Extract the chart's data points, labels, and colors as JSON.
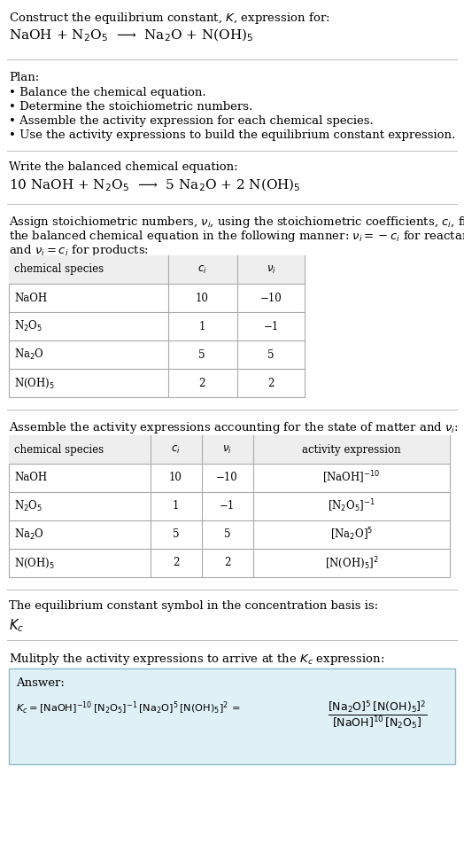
{
  "title_line1": "Construct the equilibrium constant, $K$, expression for:",
  "title_line2": "NaOH + N$_2$O$_5$  ⟶  Na$_2$O + N(OH)$_5$",
  "plan_header": "Plan:",
  "plan_bullets": [
    "• Balance the chemical equation.",
    "• Determine the stoichiometric numbers.",
    "• Assemble the activity expression for each chemical species.",
    "• Use the activity expressions to build the equilibrium constant expression."
  ],
  "balanced_header": "Write the balanced chemical equation:",
  "balanced_eq": "10 NaOH + N$_2$O$_5$  ⟶  5 Na$_2$O + 2 N(OH)$_5$",
  "stoich_intro1": "Assign stoichiometric numbers, $\\nu_i$, using the stoichiometric coefficients, $c_i$, from",
  "stoich_intro2": "the balanced chemical equation in the following manner: $\\nu_i = -c_i$ for reactants",
  "stoich_intro3": "and $\\nu_i = c_i$ for products:",
  "table1_headers": [
    "chemical species",
    "$c_i$",
    "$\\nu_i$"
  ],
  "table1_rows": [
    [
      "NaOH",
      "10",
      "−10"
    ],
    [
      "N$_2$O$_5$",
      "1",
      "−1"
    ],
    [
      "Na$_2$O",
      "5",
      "5"
    ],
    [
      "N(OH)$_5$",
      "2",
      "2"
    ]
  ],
  "activity_intro": "Assemble the activity expressions accounting for the state of matter and $\\nu_i$:",
  "table2_headers": [
    "chemical species",
    "$c_i$",
    "$\\nu_i$",
    "activity expression"
  ],
  "table2_rows": [
    [
      "NaOH",
      "10",
      "−10",
      "[NaOH]$^{-10}$"
    ],
    [
      "N$_2$O$_5$",
      "1",
      "−1",
      "[N$_2$O$_5$]$^{-1}$"
    ],
    [
      "Na$_2$O",
      "5",
      "5",
      "[Na$_2$O]$^5$"
    ],
    [
      "N(OH)$_5$",
      "2",
      "2",
      "[N(OH)$_5$]$^2$"
    ]
  ],
  "kc_intro": "The equilibrium constant symbol in the concentration basis is:",
  "kc_symbol": "$K_c$",
  "multiply_intro": "Mulitply the activity expressions to arrive at the $K_c$ expression:",
  "answer_label": "Answer:",
  "answer_box_color": "#dff0f7",
  "answer_border_color": "#8bbccc",
  "bg_color": "#ffffff",
  "text_color": "#000000",
  "sep_color": "#bbbbbb",
  "table_border_color": "#aaaaaa",
  "table_header_bg": "#eeeeee",
  "table_row_bg": "#ffffff"
}
